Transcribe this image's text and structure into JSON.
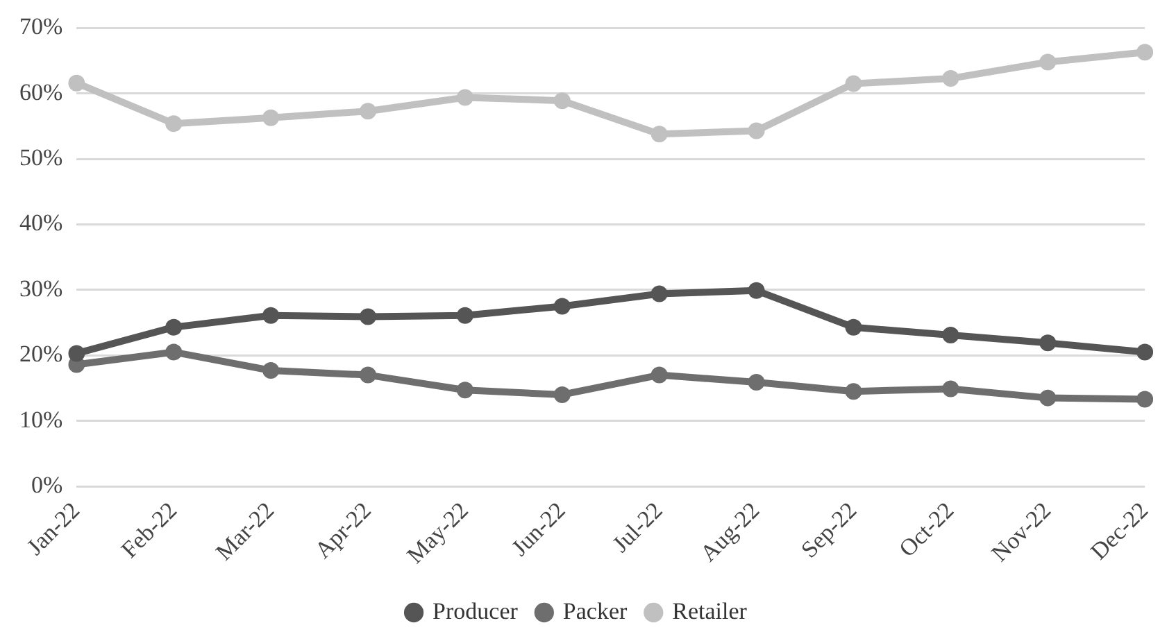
{
  "chart_data": {
    "type": "line",
    "categories": [
      "Jan-22",
      "Feb-22",
      "Mar-22",
      "Apr-22",
      "May-22",
      "Jun-22",
      "Jul-22",
      "Aug-22",
      "Sep-22",
      "Oct-22",
      "Nov-22",
      "Dec-22"
    ],
    "series": [
      {
        "name": "Producer",
        "color": "#555555",
        "values": [
          20.3,
          24.3,
          26.1,
          25.9,
          26.1,
          27.5,
          29.4,
          29.9,
          24.3,
          23.1,
          21.9,
          20.5
        ]
      },
      {
        "name": "Packer",
        "color": "#6e6e6e",
        "values": [
          18.6,
          20.5,
          17.7,
          17,
          14.7,
          14,
          17,
          15.9,
          14.5,
          14.9,
          13.5,
          13.3
        ]
      },
      {
        "name": "Retailer",
        "color": "#c0c0c0",
        "values": [
          61.6,
          55.4,
          56.3,
          57.3,
          59.4,
          58.9,
          53.8,
          54.3,
          61.5,
          62.3,
          64.8,
          66.3
        ]
      }
    ],
    "ylim": [
      0,
      70
    ],
    "yticks": [
      {
        "value": 0,
        "label": "0%"
      },
      {
        "value": 10,
        "label": "10%"
      },
      {
        "value": 20,
        "label": "20%"
      },
      {
        "value": 30,
        "label": "30%"
      },
      {
        "value": 40,
        "label": "40%"
      },
      {
        "value": 50,
        "label": "50%"
      },
      {
        "value": 60,
        "label": "60%"
      },
      {
        "value": 70,
        "label": "70%"
      }
    ],
    "grid": "y",
    "legend": "bottom",
    "marker": "circle",
    "line_style": "solid"
  }
}
